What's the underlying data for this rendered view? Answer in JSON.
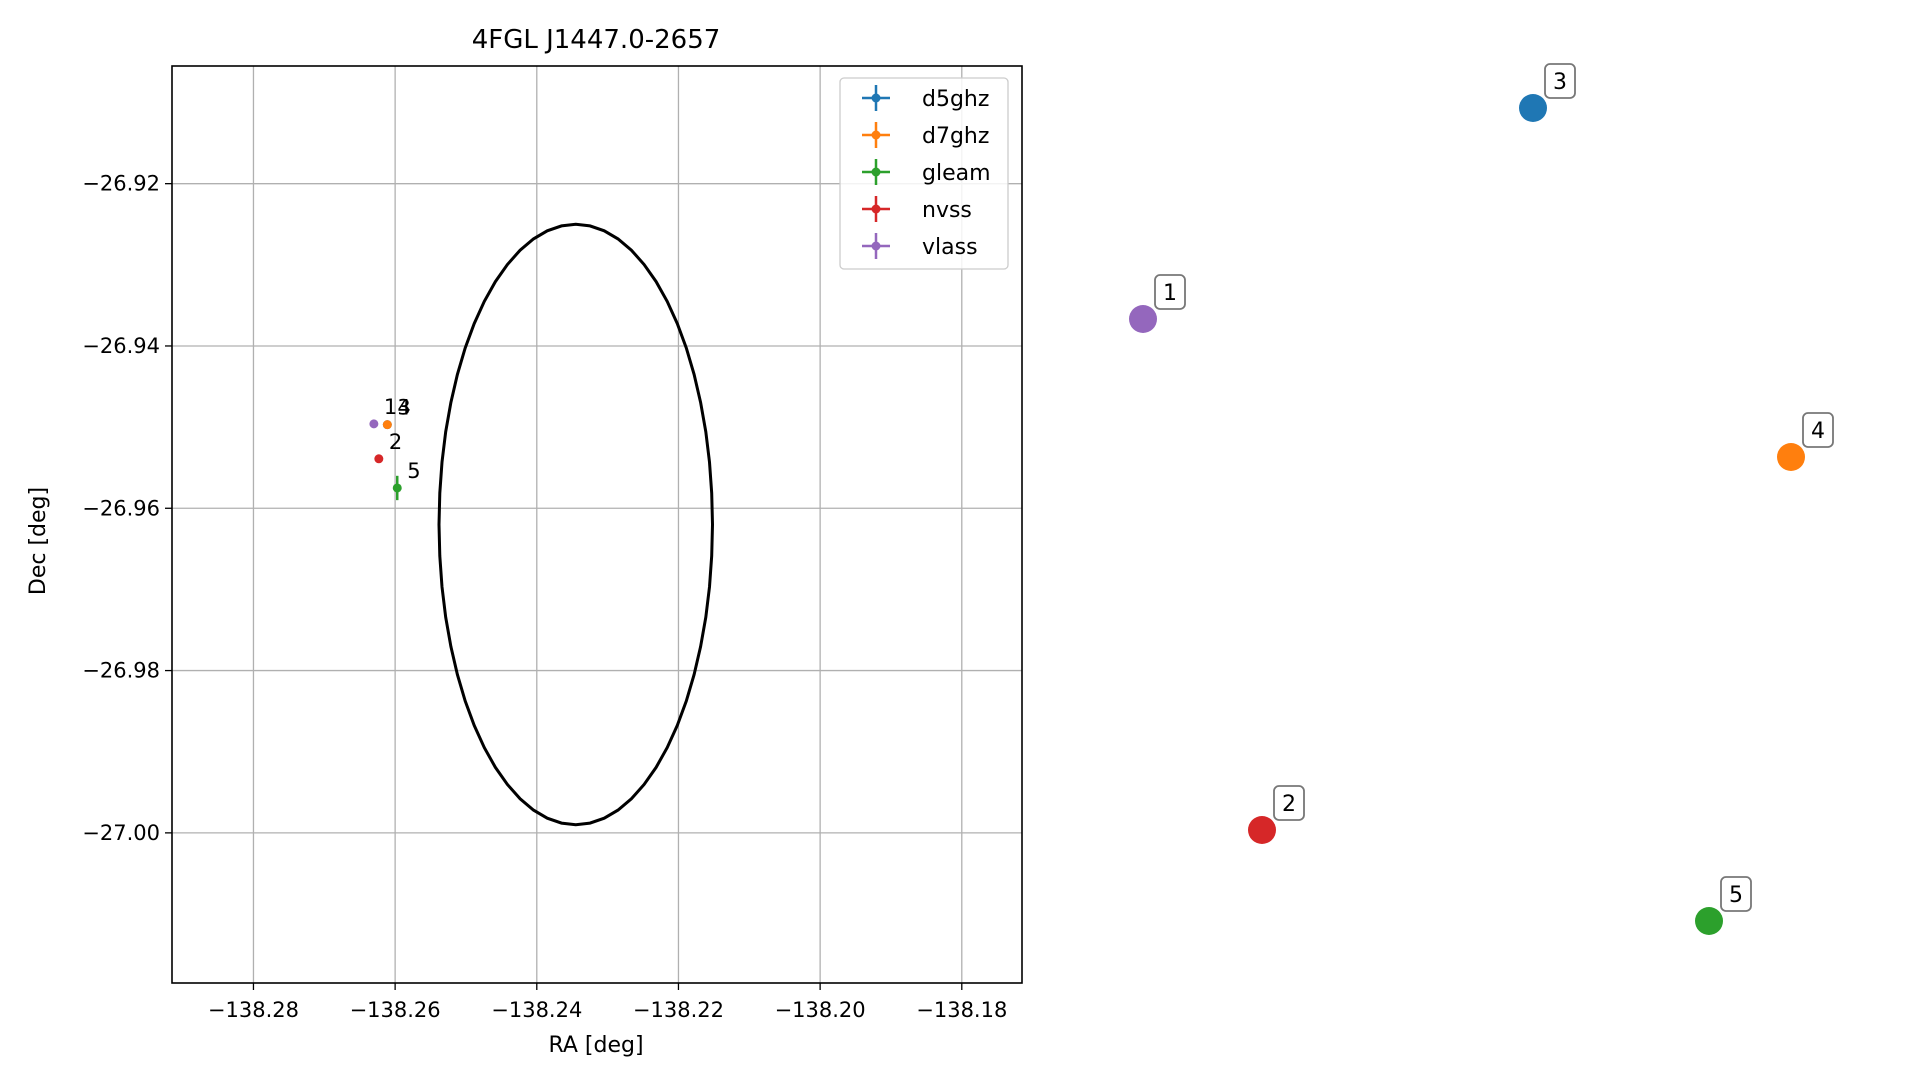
{
  "chart_data": {
    "type": "scatter",
    "title": "4FGL J1447.0-2657",
    "xlabel": "RA [deg]",
    "ylabel": "Dec [deg]",
    "xlim": [
      -138.2915,
      -138.1715
    ],
    "ylim": [
      -27.0185,
      -26.9055
    ],
    "xticks": [
      -138.28,
      -138.26,
      -138.24,
      -138.22,
      -138.2,
      -138.18
    ],
    "yticks": [
      -26.92,
      -26.94,
      -26.96,
      -26.98,
      -27.0
    ],
    "grid": true,
    "legend_position": "top-right",
    "ellipse": {
      "ra_center": -138.2345,
      "dec_center": -26.962,
      "ra_semi": 0.0193,
      "dec_semi": 0.037
    },
    "series": [
      {
        "name": "d5ghz",
        "color": "#1f77b4",
        "points": [
          {
            "label": "3",
            "ra": -138.2611,
            "dec": -26.9497
          }
        ]
      },
      {
        "name": "d7ghz",
        "color": "#ff7f0e",
        "points": [
          {
            "label": "4",
            "ra": -138.2611,
            "dec": -26.9497
          }
        ]
      },
      {
        "name": "gleam",
        "color": "#2ca02c",
        "points": [
          {
            "label": "5",
            "ra": -138.2597,
            "dec": -26.9575,
            "dec_err": 0.0015
          }
        ]
      },
      {
        "name": "nvss",
        "color": "#d62728",
        "points": [
          {
            "label": "2",
            "ra": -138.2623,
            "dec": -26.9539
          }
        ]
      },
      {
        "name": "vlass",
        "color": "#9467bd",
        "points": [
          {
            "label": "1",
            "ra": -138.263,
            "dec": -26.9496
          }
        ]
      }
    ],
    "finder": [
      {
        "label": "3",
        "color": "#1f77b4"
      },
      {
        "label": "1",
        "color": "#9467bd"
      },
      {
        "label": "4",
        "color": "#ff7f0e"
      },
      {
        "label": "2",
        "color": "#d62728"
      },
      {
        "label": "5",
        "color": "#2ca02c"
      }
    ]
  }
}
